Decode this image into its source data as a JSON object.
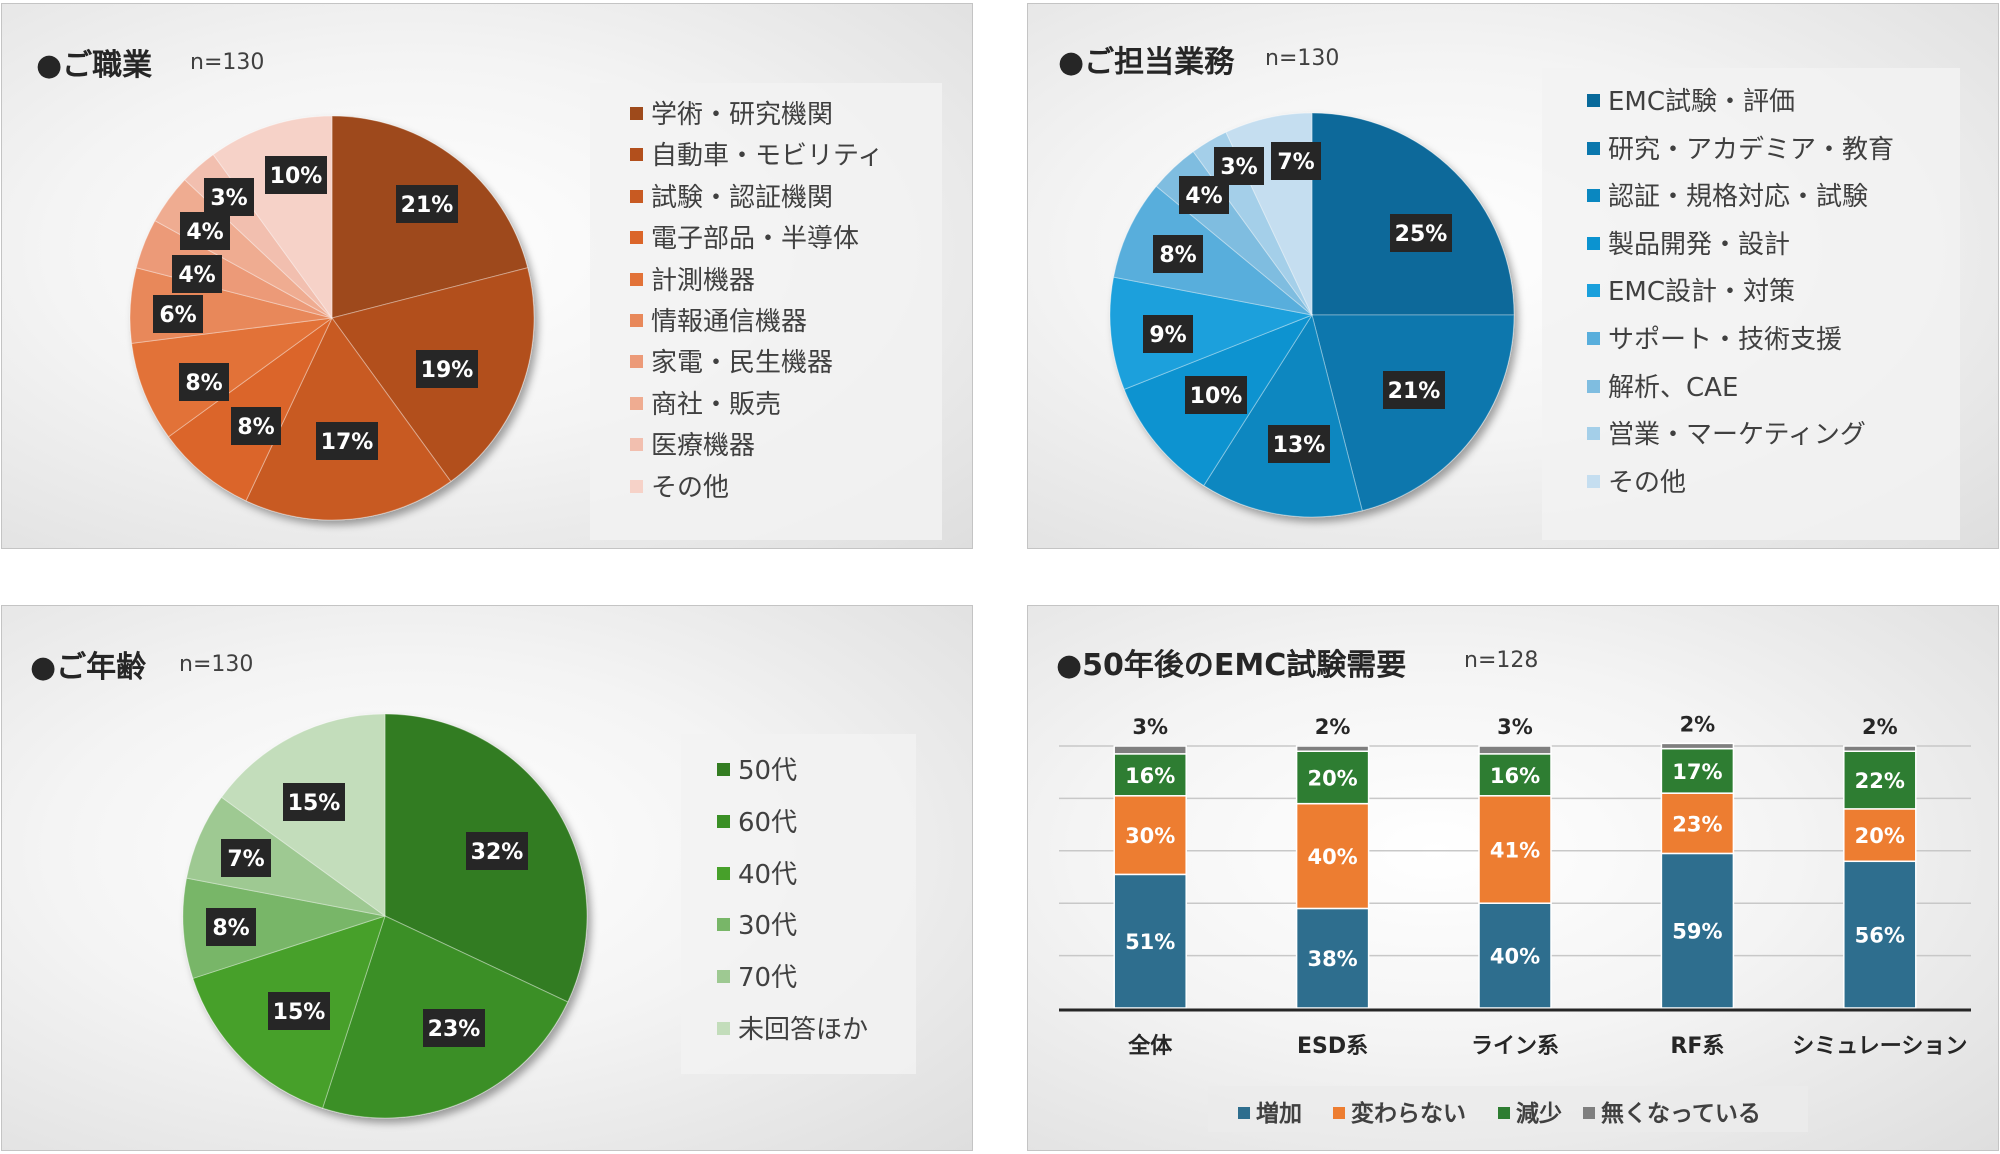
{
  "chart_data": [
    {
      "type": "pie",
      "title": "●ご職業",
      "n_label": "n=130",
      "categories": [
        "学術・研究機関",
        "自動車・モビリティ",
        "試験・認証機関",
        "電子部品・半導体",
        "計測機器",
        "情報通信機器",
        "家電・民生機器",
        "商社・販売",
        "医療機器",
        "その他"
      ],
      "values": [
        21,
        19,
        17,
        8,
        8,
        6,
        4,
        4,
        3,
        10
      ],
      "labels": [
        "21%",
        "19%",
        "17%",
        "8%",
        "8%",
        "6%",
        "4%",
        "4%",
        "3%",
        "10%"
      ],
      "colors": [
        "#9e4a1b",
        "#b24f1c",
        "#c85a22",
        "#db6529",
        "#e27238",
        "#e8885a",
        "#ec9a78",
        "#efac91",
        "#f2bfaf",
        "#f6d2c8"
      ],
      "legend_position": "right"
    },
    {
      "type": "pie",
      "title": "●ご担当業務",
      "n_label": "n=130",
      "categories": [
        "EMC試験・評価",
        "研究・アカデミア・教育",
        "認証・規格対応・試験",
        "製品開発・設計",
        "EMC設計・対策",
        "サポート・技術支援",
        "解析、CAE",
        "営業・マーケティング",
        "その他"
      ],
      "values": [
        25,
        21,
        13,
        10,
        9,
        8,
        4,
        3,
        7
      ],
      "labels": [
        "25%",
        "21%",
        "13%",
        "10%",
        "9%",
        "8%",
        "4%",
        "3%",
        "7%"
      ],
      "colors": [
        "#08699a",
        "#0a77ad",
        "#0a87c0",
        "#0b93d0",
        "#1aa0dc",
        "#58aedc",
        "#7fbde0",
        "#a4cfe9",
        "#c5def0"
      ],
      "legend_position": "right"
    },
    {
      "type": "pie",
      "title": "●ご年齢",
      "n_label": "n=130",
      "categories": [
        "50代",
        "60代",
        "40代",
        "30代",
        "70代",
        "未回答ほか"
      ],
      "values": [
        32,
        23,
        15,
        8,
        7,
        15
      ],
      "labels": [
        "32%",
        "23%",
        "15%",
        "8%",
        "7%",
        "15%"
      ],
      "colors": [
        "#337c21",
        "#3a8f25",
        "#47a02a",
        "#78b668",
        "#9ec992",
        "#c3ddbb"
      ],
      "legend_position": "right"
    },
    {
      "type": "bar",
      "stacked": true,
      "title": "●50年後のEMC試験需要",
      "n_label": "n=128",
      "categories": [
        "全体",
        "ESD系",
        "ライン系",
        "RF系",
        "シミュレーション"
      ],
      "series": [
        {
          "name": "増加",
          "values": [
            51,
            38,
            40,
            59,
            56
          ],
          "labels": [
            "51%",
            "38%",
            "40%",
            "59%",
            "56%"
          ],
          "color": "#2e6e8e"
        },
        {
          "name": "変わらない",
          "values": [
            30,
            40,
            41,
            23,
            20
          ],
          "labels": [
            "30%",
            "40%",
            "41%",
            "23%",
            "20%"
          ],
          "color": "#ed7d31"
        },
        {
          "name": "減少",
          "values": [
            16,
            20,
            16,
            17,
            22
          ],
          "labels": [
            "16%",
            "20%",
            "16%",
            "17%",
            "22%"
          ],
          "color": "#2e7d32"
        },
        {
          "name": "無くなっている",
          "values": [
            3,
            2,
            3,
            2,
            2
          ],
          "labels": [
            "3%",
            "2%",
            "3%",
            "2%",
            "2%"
          ],
          "color": "#7f7f7f"
        }
      ],
      "ylim": [
        0,
        100
      ],
      "grid": true,
      "legend_position": "bottom"
    }
  ]
}
